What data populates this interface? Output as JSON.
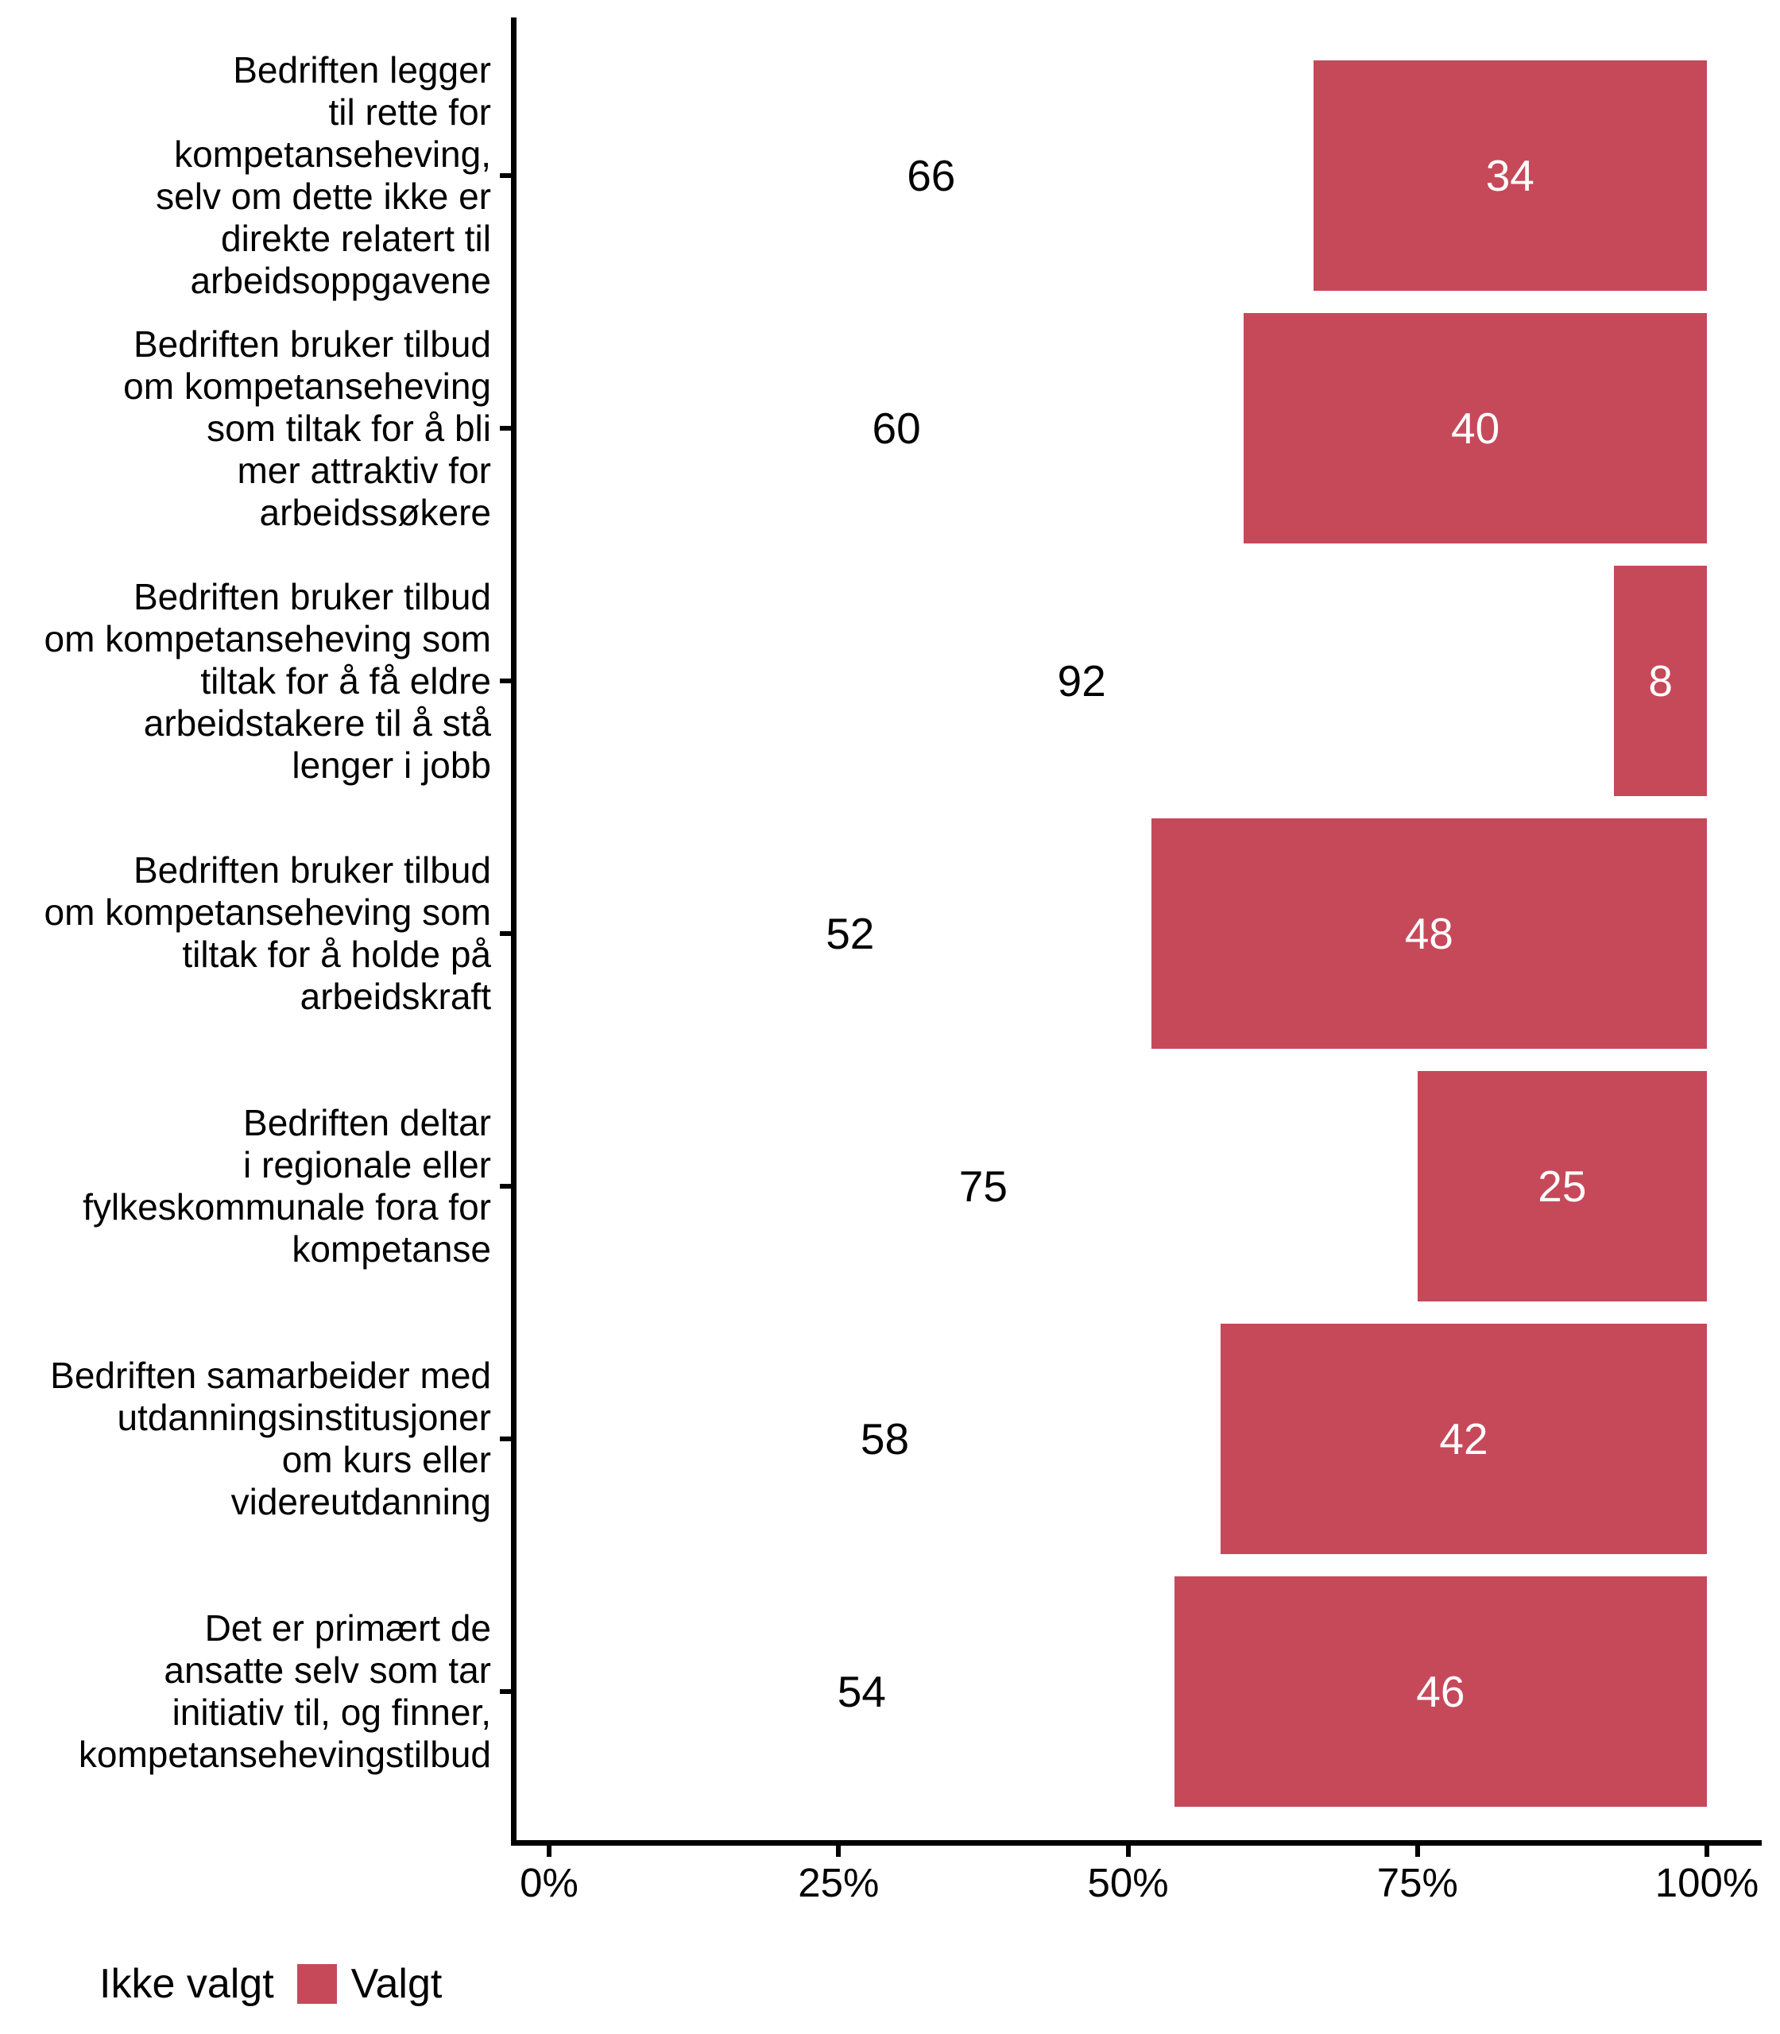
{
  "chart_data": {
    "type": "bar",
    "orientation": "horizontal",
    "stacked": true,
    "title": "",
    "xlabel": "",
    "ylabel": "",
    "xlim": [
      0,
      100
    ],
    "grid": false,
    "legend_position": "bottom-left",
    "axis_color": "#000000",
    "background_color": "#ffffff",
    "bar_label_color_on_fill": "#ffffff",
    "bar_label_color_on_empty": "#000000",
    "x_ticks": [
      {
        "value": 0,
        "label": "0%"
      },
      {
        "value": 25,
        "label": "25%"
      },
      {
        "value": 50,
        "label": "50%"
      },
      {
        "value": 75,
        "label": "75%"
      },
      {
        "value": 100,
        "label": "100%"
      }
    ],
    "categories": [
      {
        "label": "Bedriften legger til rette for kompetanseheving, selv om dette ikke er direkte relatert til arbeidsoppgavene",
        "lines": [
          "Bedriften legger",
          "til rette for",
          "kompetanseheving,",
          "selv om dette ikke er",
          "direkte relatert til",
          "arbeidsoppgavene"
        ],
        "ikke_valgt": 66,
        "valgt": 34
      },
      {
        "label": "Bedriften bruker tilbud om kompetanseheving som tiltak for å bli mer attraktiv for arbeidssøkere",
        "lines": [
          "Bedriften bruker tilbud",
          "om kompetanseheving",
          "som tiltak for å bli",
          "mer attraktiv for",
          "arbeidssøkere"
        ],
        "ikke_valgt": 60,
        "valgt": 40
      },
      {
        "label": "Bedriften bruker tilbud om kompetanseheving som tiltak for å få eldre arbeidstakere til å stå lenger i jobb",
        "lines": [
          "Bedriften bruker tilbud",
          "om kompetanseheving som",
          "tiltak for å få eldre",
          "arbeidstakere til å stå",
          "lenger i jobb"
        ],
        "ikke_valgt": 92,
        "valgt": 8
      },
      {
        "label": "Bedriften bruker tilbud om kompetanseheving som tiltak for å holde på arbeidskraft",
        "lines": [
          "Bedriften bruker tilbud",
          "om kompetanseheving som",
          "tiltak for å holde på",
          "arbeidskraft"
        ],
        "ikke_valgt": 52,
        "valgt": 48
      },
      {
        "label": "Bedriften deltar i regionale eller fylkeskommunale fora for kompetanse",
        "lines": [
          "Bedriften deltar",
          "i regionale eller",
          "fylkeskommunale fora for",
          "kompetanse"
        ],
        "ikke_valgt": 75,
        "valgt": 25
      },
      {
        "label": "Bedriften samarbeider med utdanningsinstitusjoner om kurs eller videreutdanning",
        "lines": [
          "Bedriften samarbeider med",
          "utdanningsinstitusjoner",
          "om kurs eller",
          "videreutdanning"
        ],
        "ikke_valgt": 58,
        "valgt": 42
      },
      {
        "label": "Det er primært de ansatte selv som tar initiativ til, og finner, kompetansehevingstilbud",
        "lines": [
          "Det er primært de",
          "ansatte selv som tar",
          "initiativ til, og finner,",
          "kompetansehevingstilbud"
        ],
        "ikke_valgt": 54,
        "valgt": 46
      }
    ],
    "series": [
      {
        "name": "Ikke valgt",
        "color": "#ffffff",
        "values": [
          66,
          60,
          92,
          52,
          75,
          58,
          54
        ]
      },
      {
        "name": "Valgt",
        "color": "#c6495a",
        "values": [
          34,
          40,
          8,
          48,
          25,
          42,
          46
        ]
      }
    ]
  },
  "legend": {
    "items": [
      {
        "label": "Ikke valgt",
        "color": "#ffffff"
      },
      {
        "label": "Valgt",
        "color": "#c6495a"
      }
    ]
  }
}
